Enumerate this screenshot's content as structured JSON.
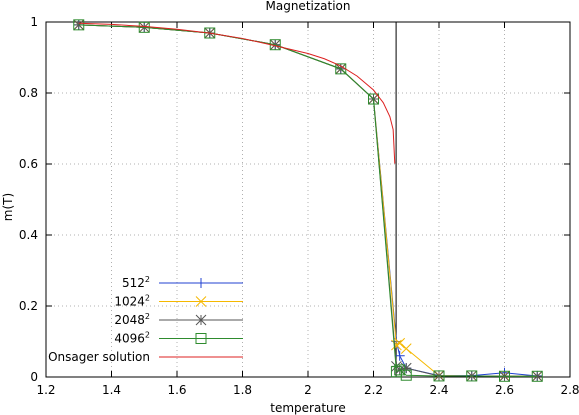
{
  "chart_data": {
    "type": "line",
    "title": "Magnetization",
    "xlabel": "temperature",
    "ylabel": "m(T)",
    "xlim": [
      1.2,
      2.8
    ],
    "ylim": [
      0,
      1
    ],
    "x_ticks": [
      "1.2",
      "1.4",
      "1.6",
      "1.8",
      "2",
      "2.2",
      "2.4",
      "2.6",
      "2.8"
    ],
    "y_ticks": [
      "0",
      "0.2",
      "0.4",
      "0.6",
      "0.8",
      "1"
    ],
    "grid": true,
    "legend_position": "bottom-left",
    "critical_temperature_line": 2.269,
    "series": [
      {
        "name": "512",
        "name_sup": "2",
        "color": "#2040d0",
        "marker": "plus",
        "x": [
          1.3,
          1.5,
          1.7,
          1.9,
          2.1,
          2.2,
          2.27,
          2.28,
          2.3,
          2.4,
          2.5,
          2.6,
          2.7
        ],
        "y": [
          0.992,
          0.985,
          0.969,
          0.936,
          0.868,
          0.783,
          0.1,
          0.06,
          0.025,
          0.004,
          0.004,
          0.012,
          0.003
        ]
      },
      {
        "name": "1024",
        "name_sup": "2",
        "color": "#f5b800",
        "marker": "cross",
        "x": [
          1.3,
          1.5,
          1.7,
          1.9,
          2.1,
          2.2,
          2.27,
          2.28,
          2.3,
          2.4,
          2.5,
          2.6,
          2.7
        ],
        "y": [
          0.992,
          0.985,
          0.969,
          0.936,
          0.868,
          0.783,
          0.09,
          0.095,
          0.08,
          0.004,
          0.003,
          0.003,
          0.002
        ]
      },
      {
        "name": "2048",
        "name_sup": "2",
        "color": "#555555",
        "marker": "star",
        "x": [
          1.3,
          1.5,
          1.7,
          1.9,
          2.1,
          2.2,
          2.27,
          2.28,
          2.3,
          2.4,
          2.5,
          2.6,
          2.7
        ],
        "y": [
          0.992,
          0.985,
          0.969,
          0.936,
          0.868,
          0.783,
          0.03,
          0.02,
          0.025,
          0.003,
          0.003,
          0.002,
          0.002
        ]
      },
      {
        "name": "4096",
        "name_sup": "2",
        "color": "#2e8b2e",
        "marker": "square",
        "x": [
          1.3,
          1.5,
          1.7,
          1.9,
          2.1,
          2.2,
          2.27,
          2.28,
          2.3,
          2.4,
          2.5,
          2.6,
          2.7
        ],
        "y": [
          0.992,
          0.985,
          0.969,
          0.936,
          0.868,
          0.783,
          0.015,
          0.02,
          0.005,
          0.003,
          0.003,
          0.002,
          0.002
        ]
      },
      {
        "name": "Onsager solution",
        "name_sup": "",
        "color": "#dd2020",
        "marker": "none",
        "x": [
          1.3,
          1.4,
          1.5,
          1.6,
          1.7,
          1.8,
          1.9,
          2.0,
          2.05,
          2.1,
          2.15,
          2.2,
          2.23,
          2.25,
          2.26,
          2.265
        ],
        "y": [
          0.9964,
          0.9932,
          0.9876,
          0.9796,
          0.9686,
          0.9537,
          0.9331,
          0.9113,
          0.8965,
          0.8763,
          0.8476,
          0.8084,
          0.7725,
          0.7334,
          0.6969,
          0.6013
        ]
      }
    ]
  }
}
